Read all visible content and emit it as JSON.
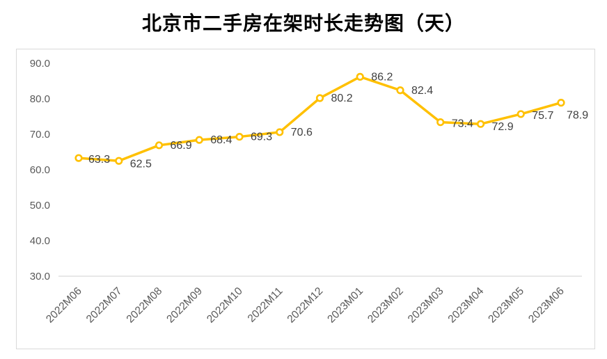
{
  "chart_data": {
    "type": "line",
    "title": "北京市二手房在架时长走势图（天）",
    "categories": [
      "2022M06",
      "2022M07",
      "2022M08",
      "2022M09",
      "2022M10",
      "2022M11",
      "2022M12",
      "2023M01",
      "2023M02",
      "2023M03",
      "2023M04",
      "2023M05",
      "2023M06"
    ],
    "values": [
      63.3,
      62.5,
      66.9,
      68.4,
      69.3,
      70.6,
      80.2,
      86.2,
      82.4,
      73.4,
      72.9,
      75.7,
      78.9
    ],
    "xlabel": "",
    "ylabel": "",
    "ylim": [
      30,
      90
    ],
    "yticks": [
      90,
      80,
      70,
      60,
      50,
      40,
      30
    ],
    "ytick_labels": [
      "90.0",
      "80.0",
      "70.0",
      "60.0",
      "50.0",
      "40.0",
      "30.0"
    ],
    "grid": "baseline-only",
    "legend": "none",
    "marker": "open-circle",
    "x_tick_rotation": -45,
    "label_dx": [
      14,
      16,
      16,
      16,
      16,
      16,
      16,
      16,
      16,
      16,
      16,
      16,
      8
    ],
    "label_dy": [
      7,
      9,
      5,
      5,
      5,
      5,
      5,
      5,
      5,
      7,
      9,
      7,
      23
    ],
    "colors": {
      "line": "#FFC000",
      "marker_fill": "#FFFFFF",
      "data_label": "#404040",
      "axis_label": "#595959",
      "baseline": "#D9D9D9",
      "container_border": "#D9D9D9",
      "title": "#000000",
      "background": "#FFFFFF"
    }
  }
}
